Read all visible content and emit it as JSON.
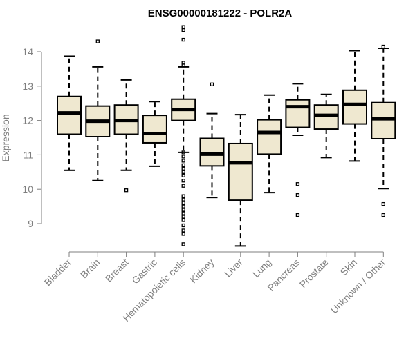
{
  "chart_data": {
    "type": "boxplot",
    "title": "ENSG00000181222 - POLR2A",
    "xlabel": "",
    "ylabel": "Expression",
    "ylim": [
      8.3,
      14.8
    ],
    "yticks": [
      9,
      10,
      11,
      12,
      13,
      14
    ],
    "categories": [
      "Bladder",
      "Brain",
      "Breast",
      "Gastric",
      "Hematopoietic cells",
      "Kidney",
      "Liver",
      "Lung",
      "Pancreas",
      "Prostate",
      "Skin",
      "Unknown / Other"
    ],
    "boxes": [
      {
        "name": "Bladder",
        "min": 10.55,
        "q1": 11.6,
        "median": 12.22,
        "q3": 12.7,
        "max": 13.87,
        "outliers": []
      },
      {
        "name": "Brain",
        "min": 10.25,
        "q1": 11.53,
        "median": 11.98,
        "q3": 12.42,
        "max": 13.56,
        "outliers": [
          14.3
        ]
      },
      {
        "name": "Breast",
        "min": 10.55,
        "q1": 11.6,
        "median": 12.0,
        "q3": 12.45,
        "max": 13.18,
        "outliers": [
          9.97
        ]
      },
      {
        "name": "Gastric",
        "min": 10.67,
        "q1": 11.35,
        "median": 11.62,
        "q3": 12.15,
        "max": 12.55,
        "outliers": []
      },
      {
        "name": "Hematopoietic cells",
        "min": 11.07,
        "q1": 12.0,
        "median": 12.32,
        "q3": 12.62,
        "max": 13.56,
        "outliers": [
          14.72,
          14.63,
          14.35,
          13.68,
          13.6,
          11.07,
          10.95,
          10.83,
          10.7,
          10.6,
          10.5,
          10.4,
          10.25,
          10.1,
          9.8,
          9.7,
          9.6,
          9.5,
          9.4,
          9.3,
          9.2,
          9.1,
          8.95,
          8.8,
          8.7,
          8.4
        ]
      },
      {
        "name": "Kidney",
        "min": 9.76,
        "q1": 10.68,
        "median": 11.02,
        "q3": 11.48,
        "max": 12.2,
        "outliers": [
          13.05
        ]
      },
      {
        "name": "Liver",
        "min": 8.35,
        "q1": 9.68,
        "median": 10.77,
        "q3": 11.33,
        "max": 12.17,
        "outliers": []
      },
      {
        "name": "Lung",
        "min": 9.9,
        "q1": 11.02,
        "median": 11.65,
        "q3": 12.02,
        "max": 12.74,
        "outliers": []
      },
      {
        "name": "Pancreas",
        "min": 11.57,
        "q1": 11.8,
        "median": 12.4,
        "q3": 12.6,
        "max": 13.07,
        "outliers": [
          10.15,
          9.83,
          9.25
        ]
      },
      {
        "name": "Prostate",
        "min": 10.92,
        "q1": 11.75,
        "median": 12.15,
        "q3": 12.45,
        "max": 12.76,
        "outliers": []
      },
      {
        "name": "Skin",
        "min": 10.82,
        "q1": 11.9,
        "median": 12.47,
        "q3": 12.88,
        "max": 14.03,
        "outliers": []
      },
      {
        "name": "Unknown / Other",
        "min": 10.02,
        "q1": 11.47,
        "median": 12.05,
        "q3": 12.52,
        "max": 14.1,
        "outliers": [
          14.15,
          9.57,
          9.25
        ]
      }
    ],
    "colors": {
      "box_fill": "#efe8d0",
      "box_stroke": "#000000",
      "axis": "#7f7f7f",
      "text": "#7f7f7f",
      "title": "#000000"
    }
  }
}
